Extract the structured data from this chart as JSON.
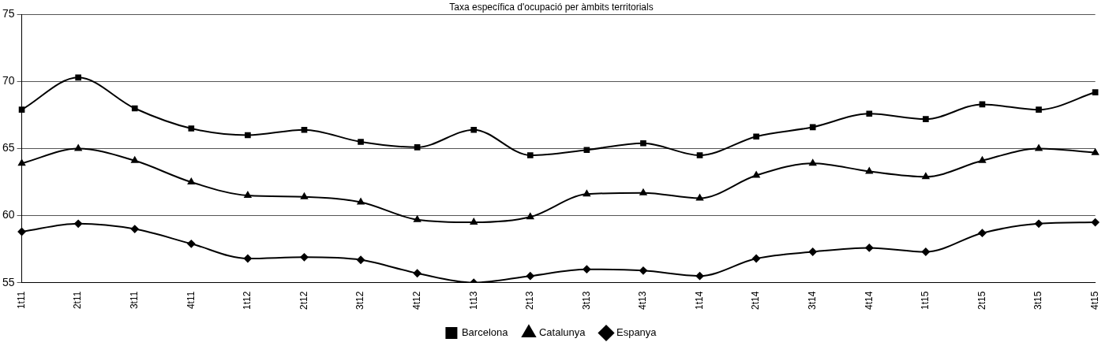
{
  "chart_data": {
    "type": "line",
    "title": "Taxa específica d'ocupació per àmbits territorials",
    "categories": [
      "1t11",
      "2t11",
      "3t11",
      "4t11",
      "1t12",
      "2t12",
      "3t12",
      "4t12",
      "1t13",
      "2t13",
      "3t13",
      "4t13",
      "1t14",
      "2t14",
      "3t14",
      "4t14",
      "1t15",
      "2t15",
      "3t15",
      "4t15"
    ],
    "series": [
      {
        "name": "Barcelona",
        "color": "#000000",
        "marker": "square",
        "values": [
          67.9,
          70.3,
          68.0,
          66.5,
          66.0,
          66.4,
          65.5,
          65.1,
          66.4,
          64.5,
          64.9,
          65.4,
          64.5,
          65.9,
          66.6,
          67.6,
          67.2,
          68.3,
          67.9,
          69.2
        ]
      },
      {
        "name": "Catalunya",
        "color": "#000000",
        "marker": "triangle",
        "values": [
          63.9,
          65.0,
          64.1,
          62.5,
          61.5,
          61.4,
          61.0,
          59.7,
          59.5,
          59.9,
          61.6,
          61.7,
          61.3,
          63.0,
          63.9,
          63.3,
          62.9,
          64.1,
          65.0,
          64.7
        ]
      },
      {
        "name": "Espanya",
        "color": "#000000",
        "marker": "diamond",
        "values": [
          58.8,
          59.4,
          59.0,
          57.9,
          56.8,
          56.9,
          56.7,
          55.7,
          55.0,
          55.5,
          56.0,
          55.9,
          55.5,
          56.8,
          57.3,
          57.6,
          57.3,
          58.7,
          59.4,
          59.5
        ]
      }
    ],
    "ylim": [
      55,
      75
    ],
    "yticks": [
      55,
      60,
      65,
      70,
      75
    ],
    "grid": "y",
    "legend": "bottom",
    "line_style": "solid"
  }
}
